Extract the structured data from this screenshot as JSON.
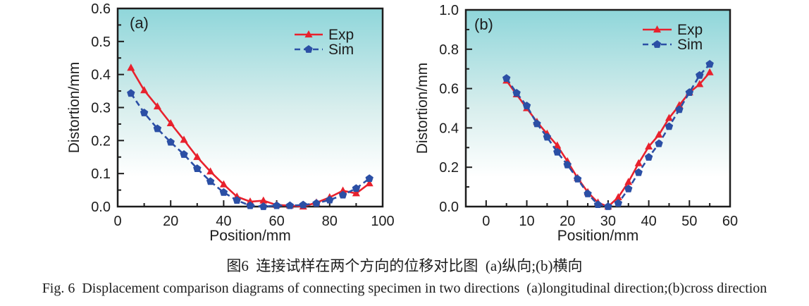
{
  "figure": {
    "caption_zh": "图6  连接试样在两个方向的位移对比图  (a)纵向;(b)横向",
    "caption_en": "Fig. 6  Displacement comparison diagrams of connecting specimen in two directions  (a)longitudinal direction;(b)cross direction"
  },
  "colors": {
    "exp": "#e8212d",
    "sim": "#2b4fa5",
    "axis": "#1d1d1d",
    "plot_bg_top": "#8fd6da",
    "plot_bg_mid": "#d8eeed",
    "plot_bg_bottom": "#ffffff"
  },
  "chart_data": [
    {
      "type": "line",
      "panel_label": "(a)",
      "xlabel": "Position/mm",
      "ylabel": "Distortion/mm",
      "xlim": [
        0,
        100
      ],
      "ylim": [
        0,
        0.6
      ],
      "x_major_ticks": [
        0,
        20,
        40,
        60,
        80,
        100
      ],
      "x_minor_ticks": [
        10,
        30,
        50,
        70,
        90
      ],
      "y_major_ticks": [
        0.0,
        0.1,
        0.2,
        0.3,
        0.4,
        0.5,
        0.6
      ],
      "y_minor_ticks": [
        0.05,
        0.15,
        0.25,
        0.35,
        0.45,
        0.55
      ],
      "y_tick_decimals": 1,
      "grid": false,
      "legend_position": "top-right",
      "x": [
        5,
        10,
        15,
        20,
        25,
        30,
        35,
        40,
        45,
        50,
        55,
        60,
        65,
        70,
        75,
        80,
        85,
        90,
        95
      ],
      "series": [
        {
          "name": "Exp",
          "marker": "triangle",
          "line_style": "solid",
          "values": [
            0.42,
            0.352,
            0.303,
            0.252,
            0.202,
            0.15,
            0.106,
            0.067,
            0.03,
            0.015,
            0.018,
            0.005,
            0.003,
            0.0,
            0.012,
            0.028,
            0.048,
            0.04,
            0.07
          ]
        },
        {
          "name": "Sim",
          "marker": "pentagon",
          "line_style": "dashed",
          "values": [
            0.343,
            0.284,
            0.236,
            0.195,
            0.158,
            0.115,
            0.076,
            0.043,
            0.019,
            0.003,
            0.0,
            0.003,
            0.003,
            0.005,
            0.01,
            0.02,
            0.035,
            0.055,
            0.085
          ]
        }
      ]
    },
    {
      "type": "line",
      "panel_label": "(b)",
      "xlabel": "Position/mm",
      "ylabel": "Distortion/mm",
      "xlim": [
        -5,
        60
      ],
      "ylim": [
        0,
        1.0
      ],
      "x_major_ticks": [
        0,
        10,
        20,
        30,
        40,
        50,
        60
      ],
      "x_minor_ticks": [
        5,
        15,
        25,
        35,
        45,
        55
      ],
      "y_major_ticks": [
        0.0,
        0.2,
        0.4,
        0.6,
        0.8,
        1.0
      ],
      "y_minor_ticks": [
        0.1,
        0.3,
        0.5,
        0.7,
        0.9
      ],
      "y_tick_decimals": 1,
      "grid": false,
      "legend_position": "top-right",
      "x": [
        5,
        7.5,
        10,
        12.5,
        15,
        17.5,
        20,
        22.5,
        25,
        27.5,
        30,
        32.5,
        35,
        37.5,
        40,
        42.5,
        45,
        47.5,
        50,
        52.5,
        55
      ],
      "series": [
        {
          "name": "Exp",
          "marker": "triangle",
          "line_style": "solid",
          "values": [
            0.64,
            0.57,
            0.5,
            0.43,
            0.37,
            0.31,
            0.23,
            0.145,
            0.073,
            0.02,
            0.0,
            0.047,
            0.125,
            0.22,
            0.305,
            0.365,
            0.45,
            0.515,
            0.58,
            0.622,
            0.682
          ]
        },
        {
          "name": "Sim",
          "marker": "pentagon",
          "line_style": "dashed",
          "values": [
            0.652,
            0.577,
            0.512,
            0.421,
            0.353,
            0.277,
            0.212,
            0.14,
            0.065,
            0.01,
            0.0,
            0.017,
            0.09,
            0.173,
            0.251,
            0.32,
            0.407,
            0.493,
            0.58,
            0.667,
            0.724
          ]
        }
      ]
    }
  ]
}
